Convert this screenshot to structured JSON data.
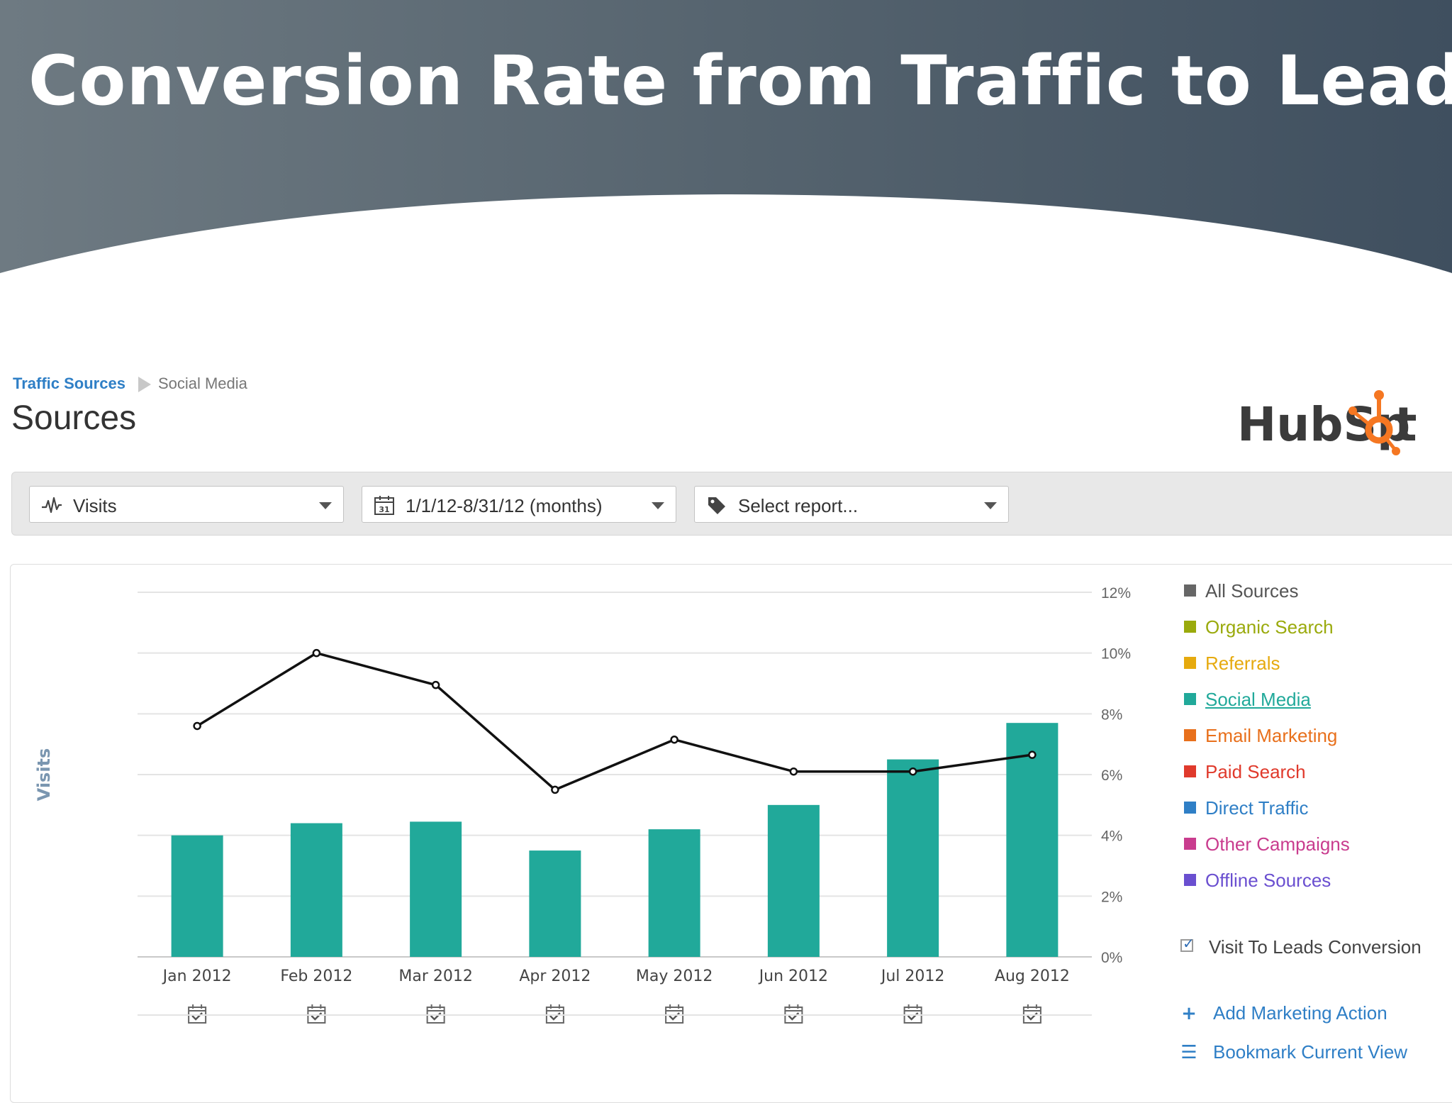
{
  "slide": {
    "title": "Conversion Rate from Traffic to Leads",
    "banner_colors": {
      "left": "#6e7a82",
      "right": "#3f4f5f"
    }
  },
  "breadcrumb": {
    "root": "Traffic Sources",
    "current": "Social Media"
  },
  "page_title": "Sources",
  "logo": {
    "text_before": "HubSp",
    "text_after": "t",
    "color": "#3b3b3b",
    "accent": "#f57722"
  },
  "toolbar": {
    "metric_dropdown": {
      "label": "Visits",
      "icon": "activity-icon"
    },
    "date_dropdown": {
      "label": "1/1/12-8/31/12 (months)",
      "icon": "calendar-icon",
      "icon_text": "31"
    },
    "report_dropdown": {
      "label": "Select report...",
      "icon": "tag-icon"
    }
  },
  "chart_data": {
    "type": "bar",
    "ylabel": "Visits",
    "categories": [
      "Jan 2012",
      "Feb 2012",
      "Mar 2012",
      "Apr 2012",
      "May 2012",
      "Jun 2012",
      "Jul 2012",
      "Aug 2012"
    ],
    "series": [
      {
        "name": "Social Media",
        "type": "bar",
        "color": "#21a99a",
        "values": [
          4.0,
          4.4,
          4.45,
          3.5,
          4.2,
          5.0,
          6.5,
          7.7
        ]
      },
      {
        "name": "Visit To Leads Conversion",
        "type": "line",
        "axis": "right",
        "color": "#111111",
        "values": [
          7.6,
          10.0,
          8.95,
          5.5,
          7.15,
          6.1,
          6.1,
          6.65
        ]
      }
    ],
    "right_axis": {
      "ticks": [
        "0%",
        "2%",
        "4%",
        "6%",
        "8%",
        "10%",
        "12%"
      ],
      "range": [
        0,
        12
      ]
    },
    "left_axis_range": [
      0,
      12
    ],
    "grid": true,
    "legend_position": "right",
    "marker_icon": "calendar-check-icon"
  },
  "legend": [
    {
      "label": "All Sources",
      "color": "#666666"
    },
    {
      "label": "Organic Search",
      "color": "#9aaa0c"
    },
    {
      "label": "Referrals",
      "color": "#e6aa0e"
    },
    {
      "label": "Social Media",
      "color": "#21a99a",
      "active": true
    },
    {
      "label": "Email Marketing",
      "color": "#e8701c"
    },
    {
      "label": "Paid Search",
      "color": "#e03a2c"
    },
    {
      "label": "Direct Traffic",
      "color": "#2f7fc6"
    },
    {
      "label": "Other Campaigns",
      "color": "#c93c8e"
    },
    {
      "label": "Offline Sources",
      "color": "#6a4fd0"
    }
  ],
  "conversion_toggle": {
    "label": "Visit To Leads Conversion",
    "checked": true
  },
  "actions": {
    "add_marketing_action": "Add Marketing Action",
    "add_icon": "plus-icon",
    "bookmark_current_view": "Bookmark Current View",
    "bookmark_icon": "list-icon"
  }
}
